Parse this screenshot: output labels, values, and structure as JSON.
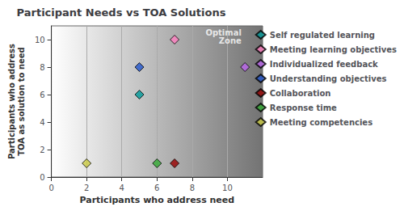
{
  "chart_data": {
    "type": "scatter",
    "title": "Participant Needs vs TOA Solutions",
    "xlabel": "Participants who address need",
    "ylabel": "Participants who address\nTOA as solution to need",
    "xlim": [
      0,
      12
    ],
    "ylim": [
      0,
      11
    ],
    "xticks": [
      0,
      2,
      4,
      6,
      8,
      10
    ],
    "yticks": [
      0,
      2,
      4,
      6,
      8,
      10
    ],
    "grid": "x",
    "legend": "right",
    "marker": "diamond",
    "series": [
      {
        "name": "Self regulated learning",
        "color": "#009999",
        "x": [
          5
        ],
        "values": [
          6
        ]
      },
      {
        "name": "Meeting learning objectives",
        "color": "#FF80C0",
        "x": [
          7
        ],
        "values": [
          10
        ]
      },
      {
        "name": "Individualized feedback",
        "color": "#BB66EE",
        "x": [
          11
        ],
        "values": [
          8
        ]
      },
      {
        "name": "Understanding objectives",
        "color": "#2255CC",
        "x": [
          5
        ],
        "values": [
          8
        ]
      },
      {
        "name": "Collaboration",
        "color": "#990000",
        "x": [
          7
        ],
        "values": [
          1
        ]
      },
      {
        "name": "Response time",
        "color": "#33AA33",
        "x": [
          6
        ],
        "values": [
          1
        ]
      },
      {
        "name": "Meeting competencies",
        "color": "#CCCC44",
        "x": [
          2
        ],
        "values": [
          1
        ]
      }
    ],
    "annotations": [
      {
        "text": "Optimal\nZone",
        "x": 10.8,
        "y": 10.8
      }
    ]
  }
}
